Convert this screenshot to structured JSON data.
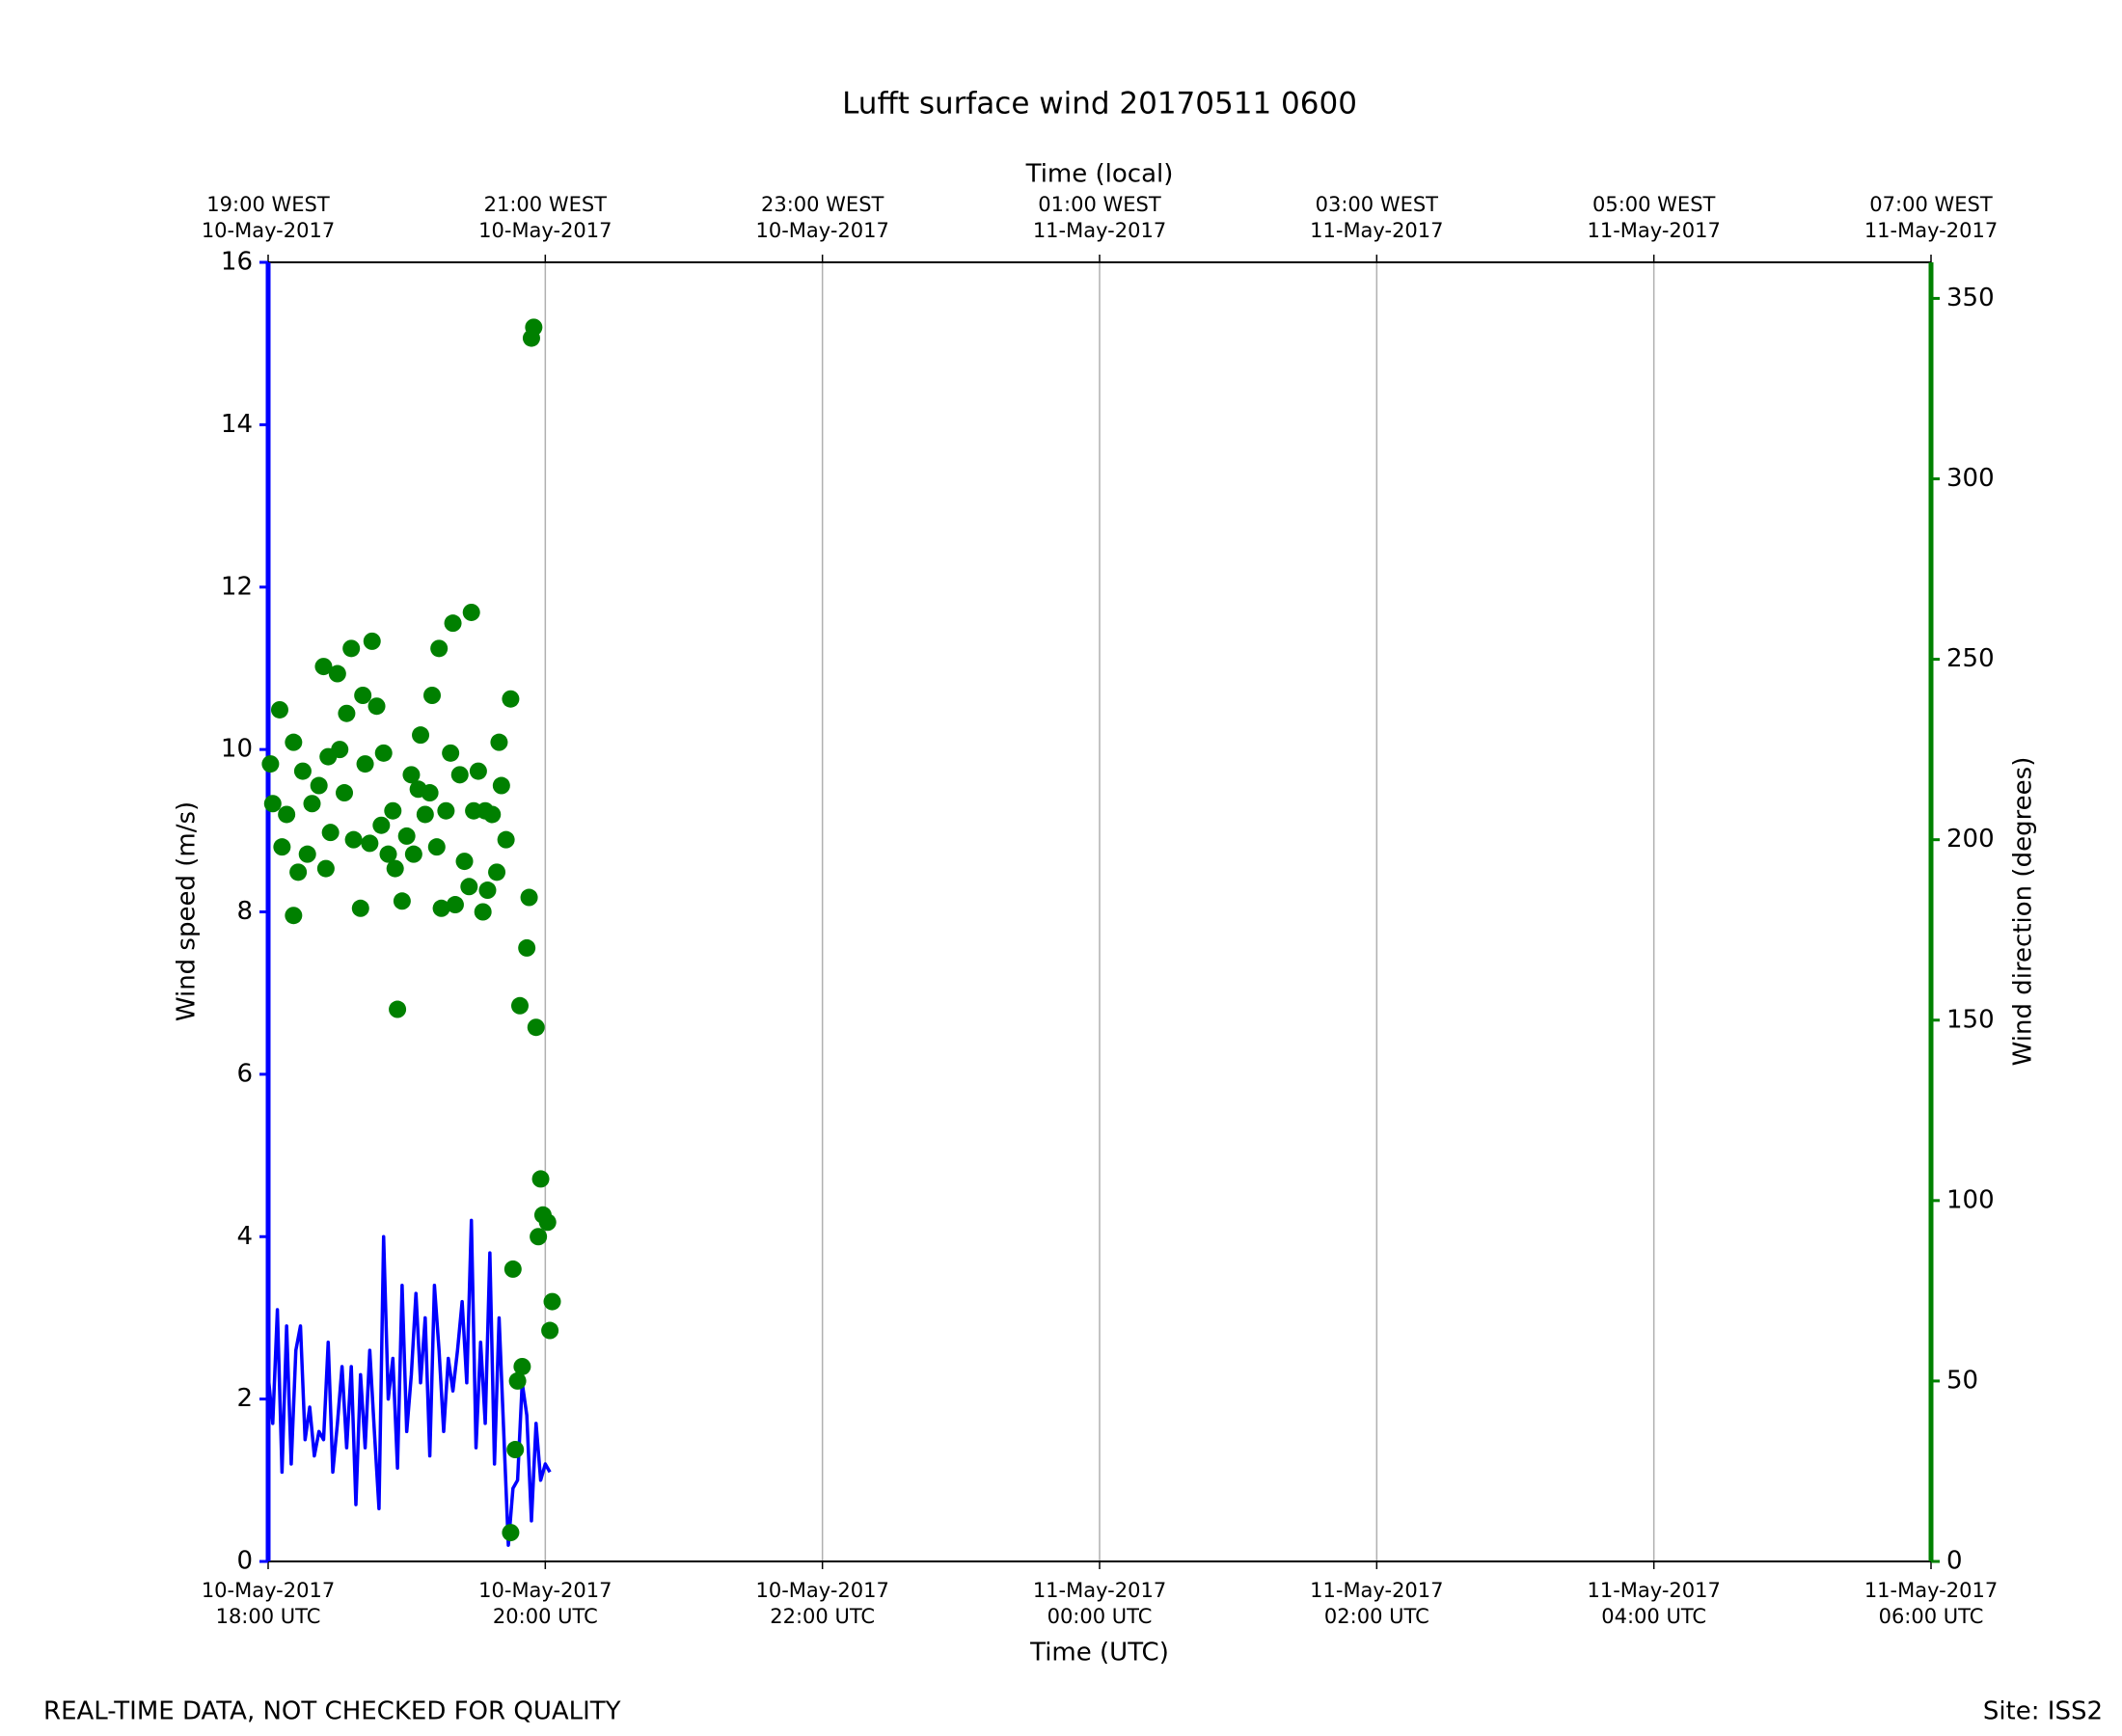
{
  "chart_data": {
    "type": "line",
    "title": "Lufft surface wind 20170511 0600",
    "xlabel": "Time (UTC)",
    "x2label": "Time (local)",
    "ylabel": "Wind speed (m/s)",
    "y2label": "Wind direction (degrees)",
    "annotations": [
      "REAL-TIME DATA, NOT CHECKED FOR QUALITY",
      "Site: ISS2"
    ],
    "xlim": [
      "2017-05-10 18:00",
      "2017-05-11 06:00"
    ],
    "xticks": [
      {
        "value": "2017-05-10 18:00",
        "label": "10-May-2017\n18:00 UTC"
      },
      {
        "value": "2017-05-10 20:00",
        "label": "10-May-2017\n20:00 UTC"
      },
      {
        "value": "2017-05-10 22:00",
        "label": "10-May-2017\n22:00 UTC"
      },
      {
        "value": "2017-05-11 00:00",
        "label": "11-May-2017\n00:00 UTC"
      },
      {
        "value": "2017-05-11 02:00",
        "label": "11-May-2017\n02:00 UTC"
      },
      {
        "value": "2017-05-11 04:00",
        "label": "11-May-2017\n04:00 UTC"
      },
      {
        "value": "2017-05-11 06:00",
        "label": "11-May-2017\n06:00 UTC"
      }
    ],
    "x2ticks": [
      {
        "value": "2017-05-10 18:00",
        "label": "19:00 WEST\n10-May-2017"
      },
      {
        "value": "2017-05-10 20:00",
        "label": "21:00 WEST\n10-May-2017"
      },
      {
        "value": "2017-05-10 22:00",
        "label": "23:00 WEST\n10-May-2017"
      },
      {
        "value": "2017-05-11 00:00",
        "label": "01:00 WEST\n11-May-2017"
      },
      {
        "value": "2017-05-11 02:00",
        "label": "03:00 WEST\n11-May-2017"
      },
      {
        "value": "2017-05-11 04:00",
        "label": "05:00 WEST\n11-May-2017"
      },
      {
        "value": "2017-05-11 06:00",
        "label": "07:00 WEST\n11-May-2017"
      }
    ],
    "ylim": [
      0,
      16
    ],
    "yticks": [
      0,
      2,
      4,
      6,
      8,
      10,
      12,
      14,
      16
    ],
    "y2lim": [
      0,
      360
    ],
    "y2ticks": [
      0,
      50,
      100,
      150,
      200,
      250,
      300,
      350
    ],
    "grid": "x",
    "series": [
      {
        "name": "Wind speed",
        "type": "line",
        "color": "blue",
        "x": [
          "2017-05-10 18:00",
          "2017-05-10 18:02",
          "2017-05-10 18:04",
          "2017-05-10 18:06",
          "2017-05-10 18:08",
          "2017-05-10 18:10",
          "2017-05-10 18:12",
          "2017-05-10 18:14",
          "2017-05-10 18:16",
          "2017-05-10 18:18",
          "2017-05-10 18:20",
          "2017-05-10 18:22",
          "2017-05-10 18:24",
          "2017-05-10 18:26",
          "2017-05-10 18:28",
          "2017-05-10 18:30",
          "2017-05-10 18:32",
          "2017-05-10 18:34",
          "2017-05-10 18:36",
          "2017-05-10 18:38",
          "2017-05-10 18:40",
          "2017-05-10 18:42",
          "2017-05-10 18:44",
          "2017-05-10 18:46",
          "2017-05-10 18:48",
          "2017-05-10 18:50",
          "2017-05-10 18:52",
          "2017-05-10 18:54",
          "2017-05-10 18:56",
          "2017-05-10 18:58",
          "2017-05-10 19:00",
          "2017-05-10 19:02",
          "2017-05-10 19:04",
          "2017-05-10 19:06",
          "2017-05-10 19:08",
          "2017-05-10 19:10",
          "2017-05-10 19:12",
          "2017-05-10 19:14",
          "2017-05-10 19:16",
          "2017-05-10 19:18",
          "2017-05-10 19:20",
          "2017-05-10 19:22",
          "2017-05-10 19:24",
          "2017-05-10 19:26",
          "2017-05-10 19:28",
          "2017-05-10 19:30",
          "2017-05-10 19:32",
          "2017-05-10 19:34",
          "2017-05-10 19:36",
          "2017-05-10 19:38",
          "2017-05-10 19:40",
          "2017-05-10 19:42",
          "2017-05-10 19:44",
          "2017-05-10 19:46",
          "2017-05-10 19:48",
          "2017-05-10 19:50",
          "2017-05-10 19:52",
          "2017-05-10 19:54",
          "2017-05-10 19:56",
          "2017-05-10 19:58",
          "2017-05-10 20:00",
          "2017-05-10 20:02"
        ],
        "values": [
          2.3,
          1.7,
          3.1,
          1.1,
          2.9,
          1.2,
          2.6,
          2.9,
          1.5,
          1.9,
          1.3,
          1.6,
          1.5,
          2.7,
          1.1,
          1.7,
          2.4,
          1.4,
          2.4,
          0.7,
          2.3,
          1.4,
          2.6,
          1.6,
          0.65,
          4.0,
          2.0,
          2.5,
          1.15,
          3.4,
          1.6,
          2.3,
          3.3,
          2.2,
          3.0,
          1.3,
          3.4,
          2.6,
          1.6,
          2.5,
          2.1,
          2.6,
          3.2,
          2.2,
          4.2,
          1.4,
          2.7,
          1.7,
          3.8,
          1.2,
          3.0,
          1.6,
          0.2,
          0.9,
          1.0,
          2.2,
          1.8,
          0.5,
          1.7,
          1.0,
          1.2,
          1.1
        ]
      },
      {
        "name": "Wind direction",
        "type": "scatter",
        "color": "green",
        "axis": "y2",
        "x": [
          "2017-05-10 18:01",
          "2017-05-10 18:02",
          "2017-05-10 18:05",
          "2017-05-10 18:06",
          "2017-05-10 18:08",
          "2017-05-10 18:11",
          "2017-05-10 18:11",
          "2017-05-10 18:13",
          "2017-05-10 18:15",
          "2017-05-10 18:17",
          "2017-05-10 18:19",
          "2017-05-10 18:22",
          "2017-05-10 18:24",
          "2017-05-10 18:25",
          "2017-05-10 18:26",
          "2017-05-10 18:27",
          "2017-05-10 18:30",
          "2017-05-10 18:31",
          "2017-05-10 18:33",
          "2017-05-10 18:34",
          "2017-05-10 18:36",
          "2017-05-10 18:37",
          "2017-05-10 18:40",
          "2017-05-10 18:41",
          "2017-05-10 18:42",
          "2017-05-10 18:44",
          "2017-05-10 18:45",
          "2017-05-10 18:47",
          "2017-05-10 18:49",
          "2017-05-10 18:50",
          "2017-05-10 18:52",
          "2017-05-10 18:54",
          "2017-05-10 18:55",
          "2017-05-10 18:56",
          "2017-05-10 18:58",
          "2017-05-10 19:00",
          "2017-05-10 19:02",
          "2017-05-10 19:03",
          "2017-05-10 19:05",
          "2017-05-10 19:06",
          "2017-05-10 19:08",
          "2017-05-10 19:10",
          "2017-05-10 19:11",
          "2017-05-10 19:13",
          "2017-05-10 19:14",
          "2017-05-10 19:15",
          "2017-05-10 19:17",
          "2017-05-10 19:19",
          "2017-05-10 19:20",
          "2017-05-10 19:21",
          "2017-05-10 19:23",
          "2017-05-10 19:25",
          "2017-05-10 19:27",
          "2017-05-10 19:28",
          "2017-05-10 19:29",
          "2017-05-10 19:31",
          "2017-05-10 19:33",
          "2017-05-10 19:34",
          "2017-05-10 19:35",
          "2017-05-10 19:37",
          "2017-05-10 19:39",
          "2017-05-10 19:40",
          "2017-05-10 19:41",
          "2017-05-10 19:43",
          "2017-05-10 19:45",
          "2017-05-10 19:45",
          "2017-05-10 19:46",
          "2017-05-10 19:47",
          "2017-05-10 19:48",
          "2017-05-10 19:49",
          "2017-05-10 19:50",
          "2017-05-10 19:52",
          "2017-05-10 19:53",
          "2017-05-10 19:54",
          "2017-05-10 19:55",
          "2017-05-10 19:56",
          "2017-05-10 19:57",
          "2017-05-10 19:58",
          "2017-05-10 19:59",
          "2017-05-10 20:01",
          "2017-05-10 20:02",
          "2017-05-10 20:03"
        ],
        "values": [
          221,
          210,
          236,
          198,
          207,
          227,
          179,
          191,
          219,
          196,
          210,
          215,
          248,
          192,
          223,
          202,
          246,
          225,
          213,
          235,
          253,
          200,
          181,
          240,
          221,
          199,
          255,
          237,
          204,
          224,
          196,
          208,
          192,
          153,
          183,
          201,
          218,
          196,
          214,
          229,
          207,
          213,
          240,
          198,
          253,
          181,
          208,
          224,
          260,
          182,
          218,
          194,
          187,
          263,
          208,
          219,
          180,
          208,
          186,
          207,
          191,
          227,
          215,
          200,
          239,
          8,
          81,
          31,
          50,
          154,
          54,
          170,
          184,
          339,
          342,
          148,
          90,
          106,
          96,
          94,
          64,
          72
        ]
      }
    ]
  }
}
